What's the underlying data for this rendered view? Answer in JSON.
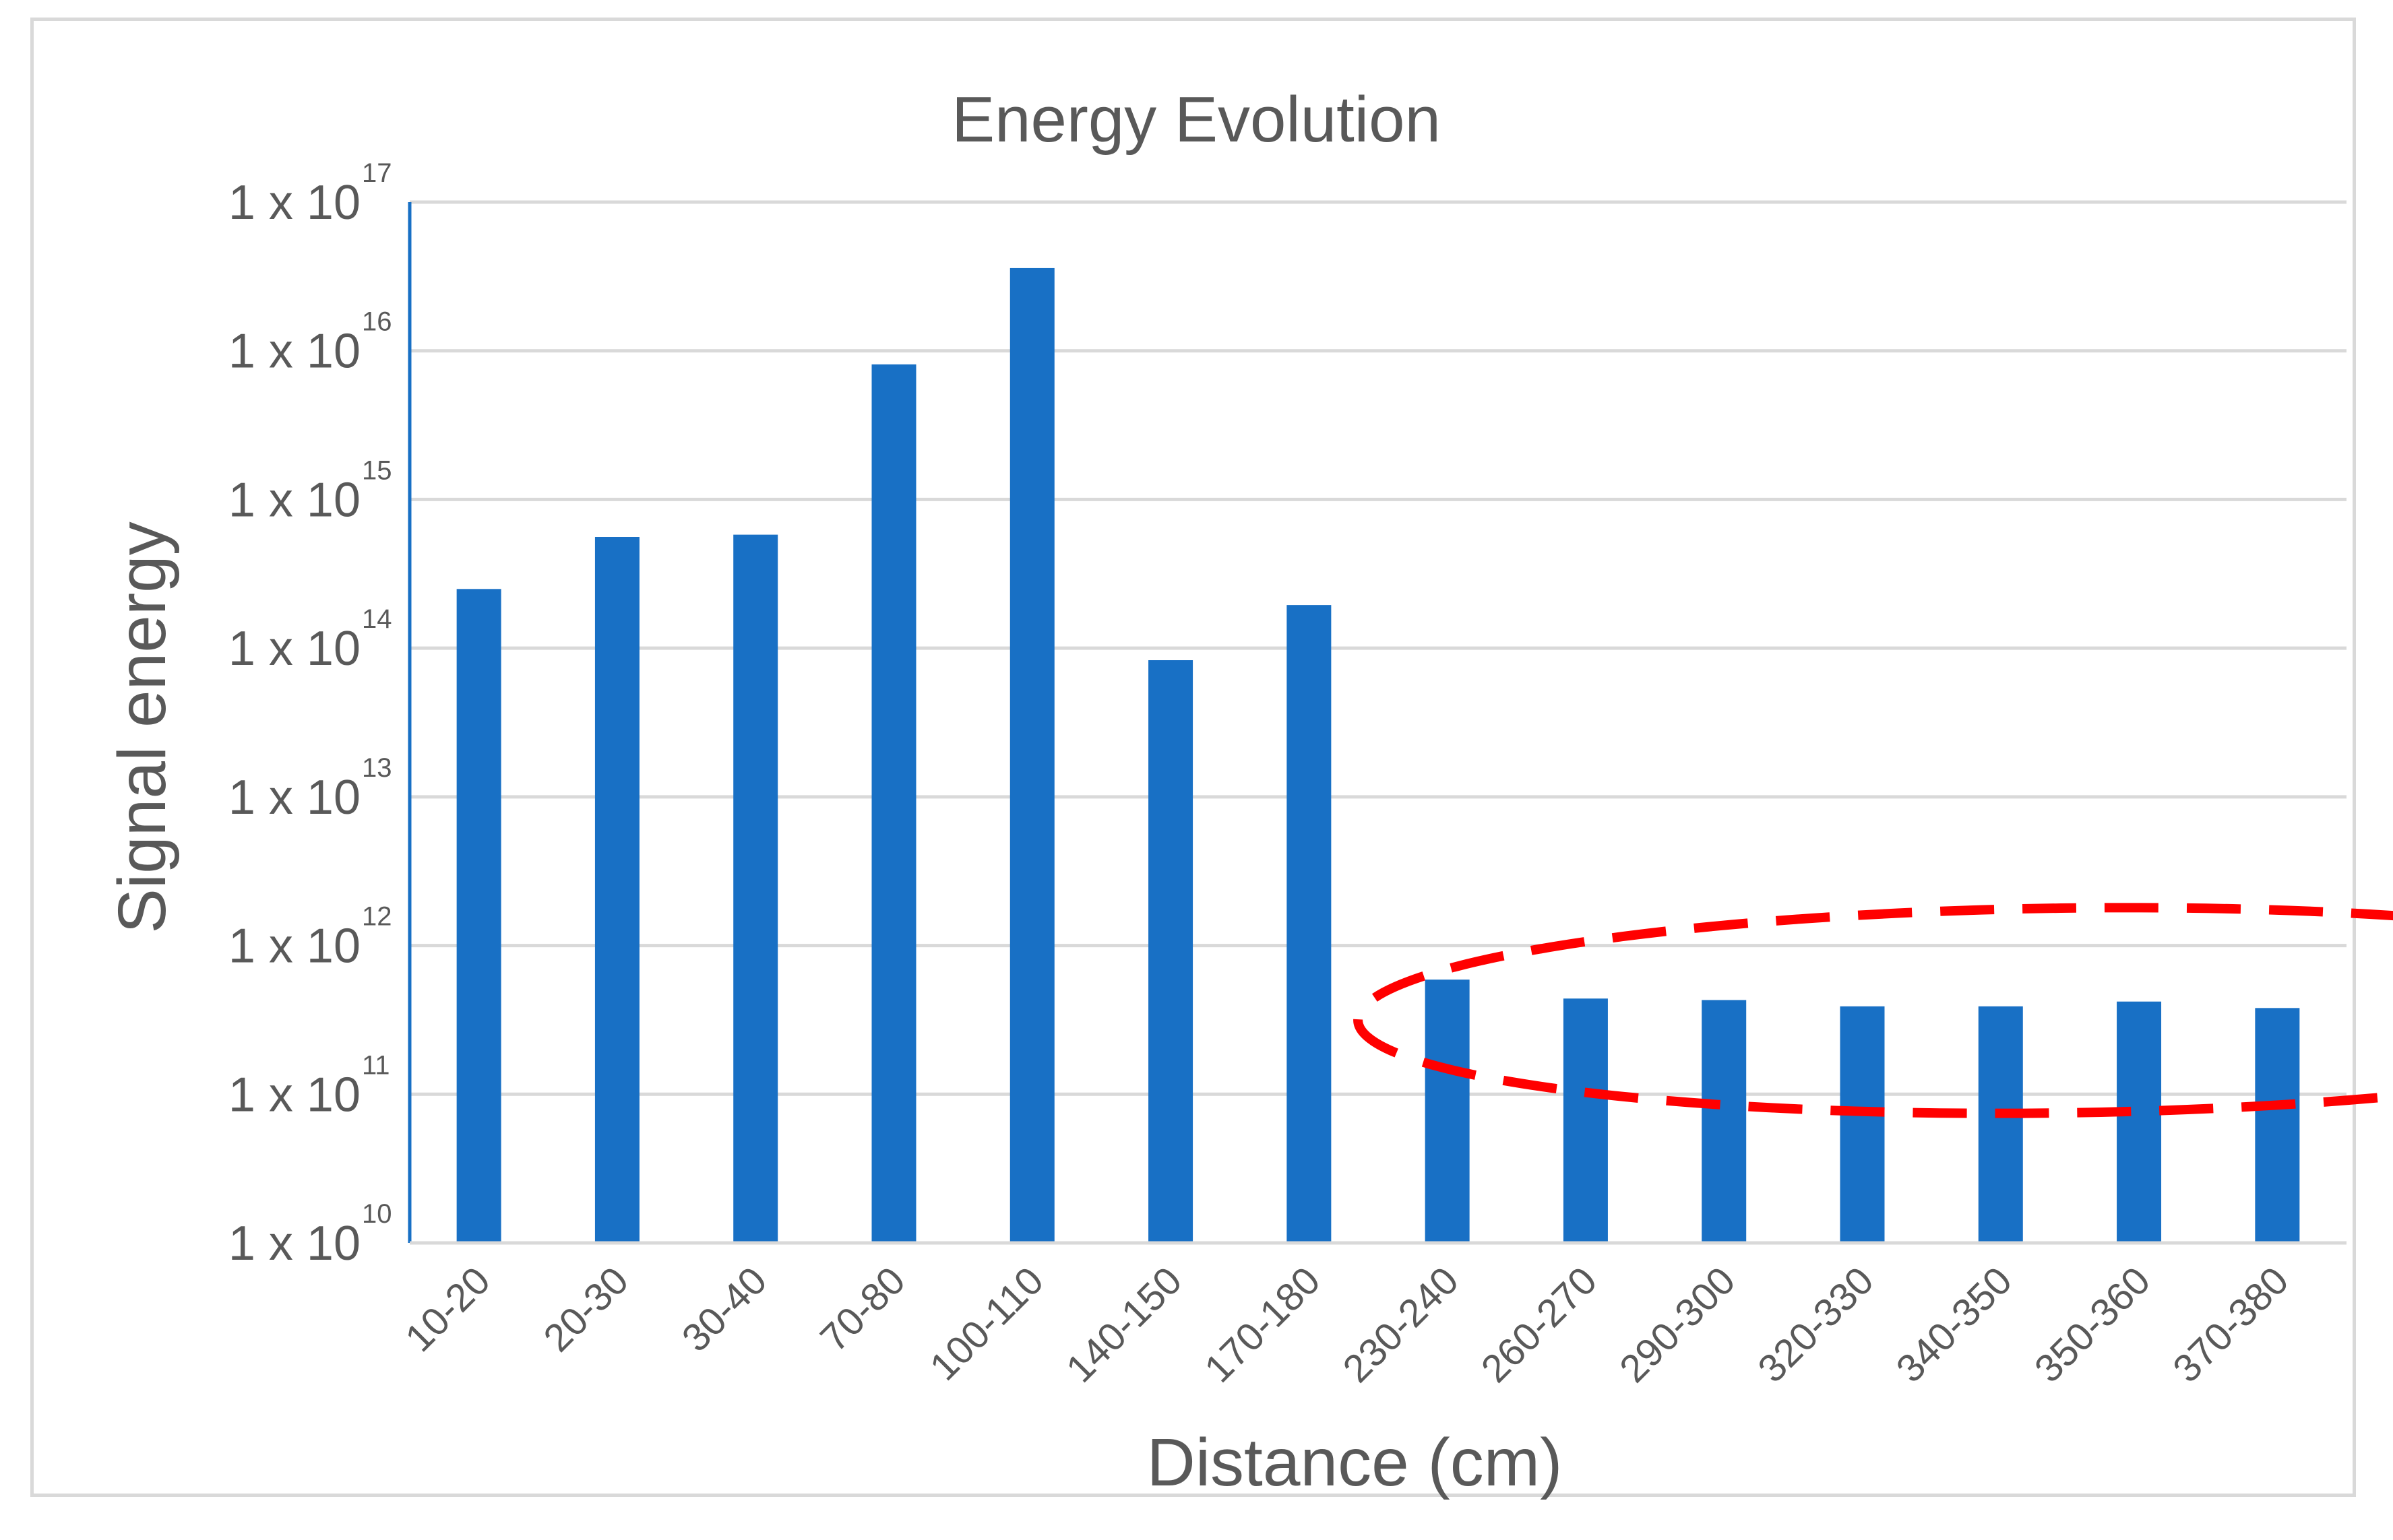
{
  "chart_data": {
    "type": "bar",
    "title": "Energy Evolution",
    "xlabel": "Distance (cm)",
    "ylabel": "Signal energy",
    "yscale": "log",
    "ylim": [
      10000000000.0,
      1e+17
    ],
    "y_ticks": [
      {
        "mantissa": "1 x 10",
        "exponent": "10",
        "value": 10000000000.0
      },
      {
        "mantissa": "1 x 10",
        "exponent": "11",
        "value": 100000000000.0
      },
      {
        "mantissa": "1 x 10",
        "exponent": "12",
        "value": 1000000000000.0
      },
      {
        "mantissa": "1 x 10",
        "exponent": "13",
        "value": 10000000000000.0
      },
      {
        "mantissa": "1 x 10",
        "exponent": "14",
        "value": 100000000000000.0
      },
      {
        "mantissa": "1 x 10",
        "exponent": "15",
        "value": 1000000000000000.0
      },
      {
        "mantissa": "1 x 10",
        "exponent": "16",
        "value": 1e+16
      },
      {
        "mantissa": "1 x 10",
        "exponent": "17",
        "value": 1e+17
      }
    ],
    "categories": [
      "10-20",
      "20-30",
      "30-40",
      "70-80",
      "100-110",
      "140-150",
      "170-180",
      "230-240",
      "260-270",
      "290-300",
      "320-330",
      "340-350",
      "350-360",
      "370-380"
    ],
    "values": [
      250000000000000.0,
      560000000000000.0,
      580000000000000.0,
      8100000000000000.0,
      3.6e+16,
      83000000000000.0,
      195000000000000.0,
      590000000000.0,
      440000000000.0,
      430000000000.0,
      390000000000.0,
      390000000000.0,
      420000000000.0,
      380000000000.0
    ],
    "grid": true,
    "colors": {
      "bar": "#1870c5",
      "axis": "#1870c5",
      "grid": "#d9d9d9",
      "text": "#595959",
      "highlight": "#ff0000"
    },
    "annotation": {
      "shape": "dashed-ellipse",
      "highlights": [
        "230-240",
        "260-270",
        "290-300",
        "320-330",
        "340-350",
        "350-360",
        "370-380"
      ]
    }
  }
}
